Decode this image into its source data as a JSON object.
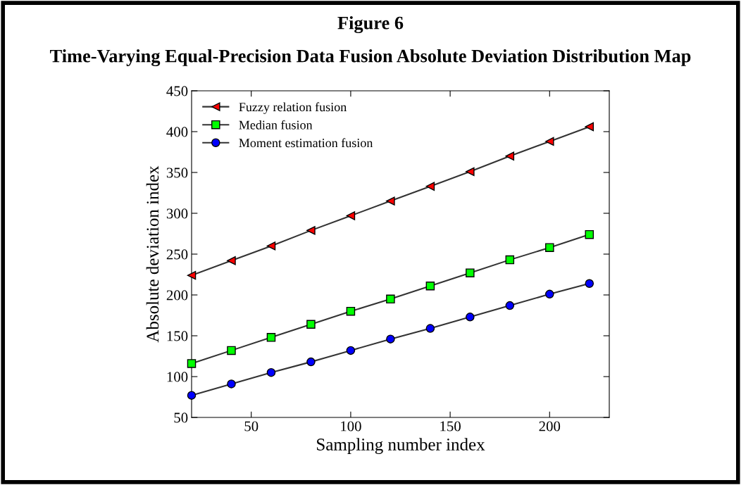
{
  "chart_data": {
    "type": "line",
    "title": "Figure 6",
    "subtitle": "Time-Varying Equal-Precision Data Fusion Absolute Deviation Distribution Map",
    "xlabel": "Sampling number index",
    "ylabel": "Absolute deviation index",
    "x": [
      20,
      40,
      60,
      80,
      100,
      120,
      140,
      160,
      180,
      200,
      220
    ],
    "series": [
      {
        "name": "Fuzzy relation fusion",
        "color": "#ff0000",
        "marker": "triangle",
        "values": [
          224,
          242,
          260,
          279,
          297,
          315,
          333,
          351,
          370,
          388,
          406
        ]
      },
      {
        "name": "Median fusion",
        "color": "#00ff00",
        "marker": "square",
        "values": [
          116,
          132,
          148,
          164,
          180,
          195,
          211,
          227,
          243,
          258,
          274
        ]
      },
      {
        "name": "Moment estimation fusion",
        "color": "#0000ff",
        "marker": "circle",
        "values": [
          77,
          91,
          105,
          118,
          132,
          146,
          159,
          173,
          187,
          201,
          214
        ]
      }
    ],
    "xlim": [
      20,
      230
    ],
    "xticks": [
      50,
      100,
      150,
      200
    ],
    "ylim": [
      50,
      450
    ],
    "yticks": [
      50,
      100,
      150,
      200,
      250,
      300,
      350,
      400,
      450
    ],
    "grid": false,
    "legend": "top left",
    "line_style": "solid"
  }
}
